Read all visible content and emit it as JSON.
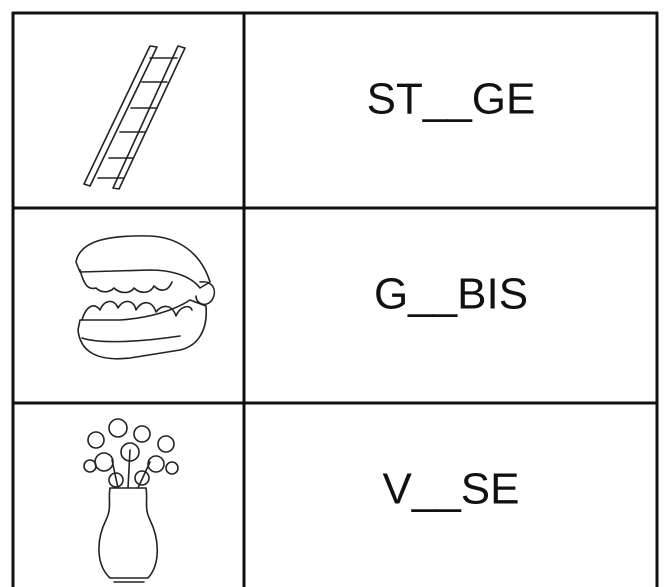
{
  "table": {
    "rows": [
      {
        "word": "ST__GE"
      },
      {
        "word": "G__BIS"
      },
      {
        "word": "V__SE"
      }
    ]
  }
}
